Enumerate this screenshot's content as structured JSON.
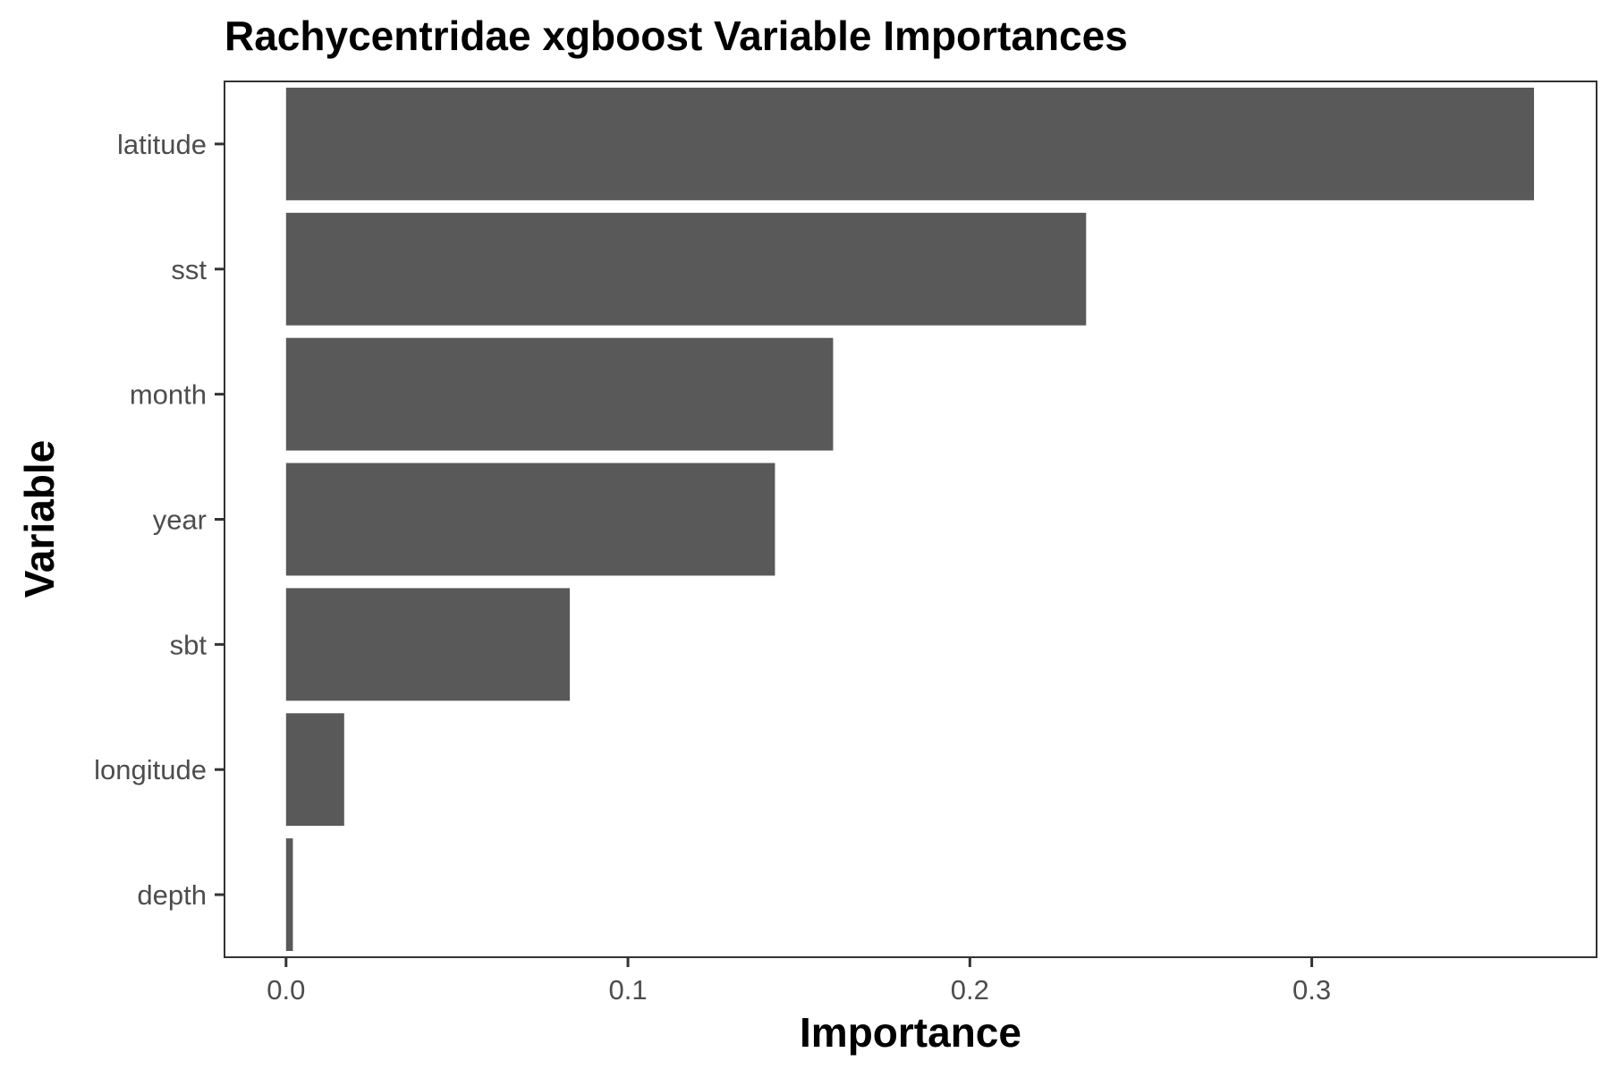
{
  "chart_data": {
    "type": "bar",
    "orientation": "horizontal",
    "title": "Rachycentridae xgboost Variable Importances",
    "xlabel": "Importance",
    "ylabel": "Variable",
    "categories": [
      "latitude",
      "sst",
      "month",
      "year",
      "sbt",
      "longitude",
      "depth"
    ],
    "values": [
      0.365,
      0.234,
      0.16,
      0.143,
      0.083,
      0.017,
      0.002
    ],
    "x_ticks": [
      "0.0",
      "0.1",
      "0.2",
      "0.3"
    ],
    "x_tick_values": [
      0,
      0.1,
      0.2,
      0.3
    ],
    "xlim": [
      -0.018,
      0.3833
    ],
    "grid": false,
    "bar_color": "#595959"
  }
}
